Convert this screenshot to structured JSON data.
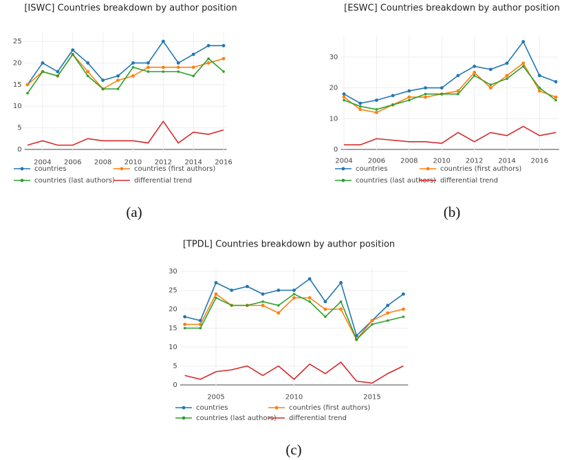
{
  "chart_data": [
    {
      "type": "line",
      "title": "[ISWC] Countries breakdown by author position",
      "caption": "(a)",
      "x": [
        2003,
        2004,
        2005,
        2006,
        2007,
        2008,
        2009,
        2010,
        2011,
        2012,
        2013,
        2014,
        2015,
        2016
      ],
      "xlim": [
        2002.8,
        2016.2
      ],
      "xticks": [
        2004,
        2006,
        2008,
        2010,
        2012,
        2014,
        2016
      ],
      "ylim": [
        -1,
        27
      ],
      "yticks": [
        0,
        5,
        10,
        15,
        20,
        25
      ],
      "grid": true,
      "series": [
        {
          "name": "countries",
          "color": "#1f77b4",
          "marker": true,
          "values": [
            15,
            20,
            18,
            23,
            20,
            16,
            17,
            20,
            20,
            25,
            20,
            22,
            24,
            24
          ]
        },
        {
          "name": "countries (first authors)",
          "color": "#ff7f0e",
          "marker": true,
          "values": [
            15,
            18,
            17,
            22,
            18,
            14,
            16,
            17,
            19,
            19,
            19,
            19,
            20,
            21
          ]
        },
        {
          "name": "countries (last authors)",
          "color": "#2ca02c",
          "marker": true,
          "values": [
            13,
            18,
            17,
            22,
            17,
            14,
            14,
            19,
            18,
            18,
            18,
            17,
            21,
            18
          ]
        },
        {
          "name": "differential trend",
          "color": "#d62728",
          "marker": false,
          "values": [
            1,
            2,
            1,
            1,
            2.5,
            2,
            2,
            2,
            1.5,
            6.5,
            1.5,
            4,
            3.5,
            4.5
          ]
        }
      ]
    },
    {
      "type": "line",
      "title": "[ESWC] Countries breakdown by author position",
      "caption": "(b)",
      "x": [
        2004,
        2005,
        2006,
        2007,
        2008,
        2009,
        2010,
        2011,
        2012,
        2013,
        2014,
        2015,
        2016,
        2017
      ],
      "xlim": [
        2003.8,
        2017.2
      ],
      "xticks": [
        2004,
        2006,
        2008,
        2010,
        2012,
        2014,
        2016
      ],
      "ylim": [
        -1,
        37
      ],
      "yticks": [
        0,
        10,
        20,
        30
      ],
      "grid": true,
      "series": [
        {
          "name": "countries",
          "color": "#1f77b4",
          "marker": true,
          "values": [
            18,
            15,
            16,
            17.5,
            19,
            20,
            20,
            24,
            27,
            26,
            28,
            35,
            24,
            22
          ]
        },
        {
          "name": "countries (first authors)",
          "color": "#ff7f0e",
          "marker": true,
          "values": [
            17,
            13,
            12,
            14.5,
            17,
            17,
            18,
            19,
            25,
            20,
            24,
            28,
            19,
            17
          ]
        },
        {
          "name": "countries (last authors)",
          "color": "#2ca02c",
          "marker": true,
          "values": [
            16,
            14,
            13,
            14.5,
            16,
            18,
            18,
            18,
            24,
            21,
            23,
            27,
            20,
            16
          ]
        },
        {
          "name": "differential trend",
          "color": "#d62728",
          "marker": false,
          "values": [
            1.5,
            1.5,
            3.5,
            3,
            2.5,
            2.5,
            2,
            5.5,
            2.5,
            5.5,
            4.5,
            7.5,
            4.5,
            5.5
          ]
        }
      ]
    },
    {
      "type": "line",
      "title": "[TPDL] Countries breakdown by author position",
      "caption": "(c)",
      "x": [
        2003,
        2004,
        2005,
        2006,
        2007,
        2008,
        2009,
        2010,
        2011,
        2012,
        2013,
        2014,
        2015,
        2016,
        2017
      ],
      "xlim": [
        2002.7,
        2017.3
      ],
      "xticks": [
        2005,
        2010,
        2015
      ],
      "ylim": [
        -1,
        31
      ],
      "yticks": [
        0,
        5,
        10,
        15,
        20,
        25,
        30
      ],
      "grid": true,
      "series": [
        {
          "name": "countries",
          "color": "#1f77b4",
          "marker": true,
          "values": [
            18,
            17,
            27,
            25,
            26,
            24,
            25,
            25,
            28,
            22,
            27,
            13,
            17,
            21,
            24
          ]
        },
        {
          "name": "countries (first authors)",
          "color": "#ff7f0e",
          "marker": true,
          "values": [
            16,
            16,
            24,
            21,
            21,
            21,
            19,
            23,
            23,
            20,
            20,
            12,
            17,
            19,
            20
          ]
        },
        {
          "name": "countries (last authors)",
          "color": "#2ca02c",
          "marker": true,
          "values": [
            15,
            15,
            23,
            21,
            21,
            22,
            21,
            24,
            22,
            18,
            22,
            12,
            16,
            17,
            18
          ]
        },
        {
          "name": "differential trend",
          "color": "#d62728",
          "marker": false,
          "values": [
            2.5,
            1.5,
            3.5,
            4,
            5,
            2.5,
            5,
            1.5,
            5.5,
            3,
            6,
            1,
            0.5,
            3,
            5
          ]
        }
      ]
    }
  ]
}
